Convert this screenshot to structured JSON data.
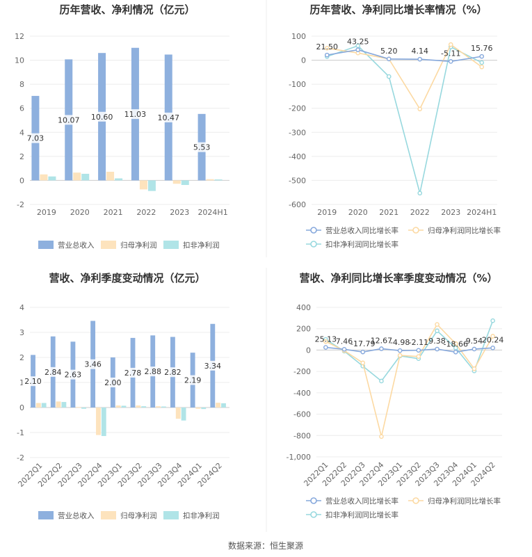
{
  "source": "数据来源：恒生聚源",
  "colors": {
    "revenue": "#8eb0de",
    "parent": "#fde3bd",
    "deducted": "#b0e4e7",
    "revenue_line": "#86a8dc",
    "parent_line": "#fcd9a2",
    "deducted_line": "#97d8de"
  },
  "chart_data": [
    {
      "type": "bar",
      "title": "历年营收、净利情况（亿元）",
      "categories": [
        "2019",
        "2020",
        "2021",
        "2022",
        "2023",
        "2024H1"
      ],
      "ylim": [
        -2,
        12
      ],
      "yticks": [
        -2,
        0,
        2,
        4,
        6,
        8,
        10,
        12
      ],
      "legend_position": "bottom",
      "series": [
        {
          "name": "营业总收入",
          "values": [
            7.03,
            10.07,
            10.6,
            11.03,
            10.47,
            5.53
          ],
          "labels": [
            "7.03",
            "10.07",
            "10.60",
            "11.03",
            "10.47",
            "5.53"
          ]
        },
        {
          "name": "归母净利润",
          "values": [
            0.5,
            0.65,
            0.72,
            -0.75,
            -0.28,
            0.1
          ]
        },
        {
          "name": "扣非净利润",
          "values": [
            0.33,
            0.55,
            0.17,
            -0.88,
            -0.38,
            0.08
          ]
        }
      ]
    },
    {
      "type": "line",
      "title": "历年营收、净利同比增长率情况（%）",
      "categories": [
        "2019",
        "2020",
        "2021",
        "2022",
        "2023",
        "2024H1"
      ],
      "ylim": [
        -600,
        100
      ],
      "yticks": [
        -600,
        -500,
        -400,
        -300,
        -200,
        -100,
        0,
        100
      ],
      "legend_position": "bottom",
      "series": [
        {
          "name": "营业总收入同比增长率",
          "values": [
            21.5,
            43.25,
            5.2,
            4.14,
            -5.11,
            15.76
          ],
          "labels": [
            "21.50",
            "43.25",
            "5.20",
            "4.14",
            "-5.11",
            "15.76"
          ]
        },
        {
          "name": "归母净利润同比增长率",
          "values": [
            50,
            30,
            5,
            -203,
            65,
            -28
          ]
        },
        {
          "name": "扣非净利润同比增长率",
          "values": [
            15,
            60,
            -68,
            -553,
            55,
            -10
          ]
        }
      ]
    },
    {
      "type": "bar",
      "title": "营收、净利季度变动情况（亿元）",
      "categories": [
        "2022Q1",
        "2022Q2",
        "2022Q3",
        "2022Q4",
        "2023Q1",
        "2023Q2",
        "2023Q3",
        "2023Q4",
        "2024Q1",
        "2024Q2"
      ],
      "ylim": [
        -2,
        4
      ],
      "yticks": [
        -2,
        -1,
        0,
        1,
        2,
        3,
        4
      ],
      "legend_position": "bottom",
      "series": [
        {
          "name": "营业总收入",
          "values": [
            2.1,
            2.84,
            2.63,
            3.46,
            2.0,
            2.78,
            2.88,
            2.82,
            2.19,
            3.34
          ],
          "labels": [
            "2.10",
            "2.84",
            "2.63",
            "3.46",
            "2.00",
            "2.78",
            "2.88",
            "2.82",
            "2.19",
            "3.34"
          ]
        },
        {
          "name": "归母净利润",
          "values": [
            0.18,
            0.24,
            0.02,
            -1.1,
            0.08,
            0.08,
            0.05,
            -0.45,
            -0.05,
            0.19
          ]
        },
        {
          "name": "扣非净利润",
          "values": [
            0.18,
            0.22,
            -0.05,
            -1.14,
            0.07,
            0.05,
            0.04,
            -0.52,
            -0.06,
            0.17
          ]
        }
      ]
    },
    {
      "type": "line",
      "title": "营收、净利同比增长率季度变动情况（%）",
      "categories": [
        "2022Q1",
        "2022Q2",
        "2022Q3",
        "2022Q4",
        "2023Q1",
        "2023Q2",
        "2023Q3",
        "2023Q4",
        "2024Q1",
        "2024Q2"
      ],
      "ylim": [
        -1000,
        400
      ],
      "yticks": [
        -1000,
        -800,
        -600,
        -400,
        -200,
        0,
        200,
        400
      ],
      "legend_position": "bottom",
      "series": [
        {
          "name": "营业总收入同比增长率",
          "values": [
            25.13,
            7.46,
            -17.79,
            12.67,
            -4.98,
            -2.11,
            9.38,
            -18.66,
            9.54,
            20.24
          ],
          "labels": [
            "25.13",
            "7.46",
            "-17.79",
            "12.67",
            "-4.98",
            "-2.11",
            "9.38",
            "-18.66",
            "9.54",
            "20.24"
          ]
        },
        {
          "name": "归母净利润同比增长率",
          "values": [
            80,
            -5,
            -120,
            -810,
            -50,
            -60,
            240,
            60,
            -175,
            130
          ]
        },
        {
          "name": "扣非净利润同比增长率",
          "values": [
            100,
            -10,
            -150,
            -290,
            -55,
            -80,
            180,
            20,
            -195,
            275
          ]
        }
      ]
    }
  ]
}
